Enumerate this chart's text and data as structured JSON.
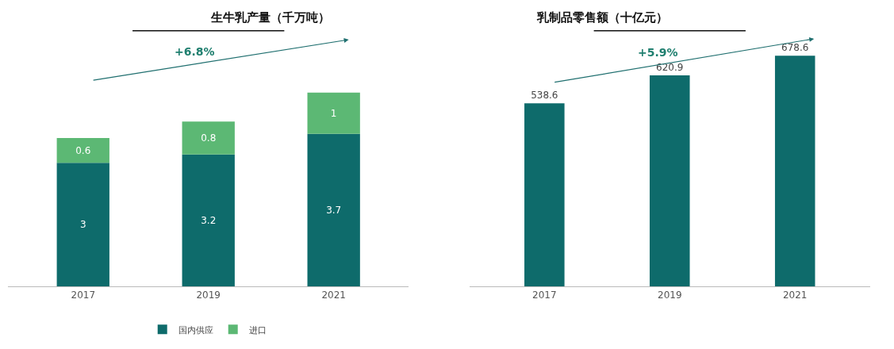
{
  "chart_data": [
    {
      "type": "bar",
      "title": "生牛乳产量（千万吨）",
      "categories": [
        "2017",
        "2019",
        "2021"
      ],
      "stacked": true,
      "series": [
        {
          "name": "国内供应",
          "color": "#0e6b6b",
          "values": [
            3,
            3.2,
            3.7
          ]
        },
        {
          "name": "进口",
          "color": "#5cb874",
          "values": [
            0.6,
            0.8,
            1
          ]
        }
      ],
      "tick_labels": "x",
      "data_labels": true,
      "legend": "bottom",
      "annotations": [
        "+6.8%"
      ]
    },
    {
      "type": "bar",
      "title": "乳制品零售额（十亿元）",
      "categories": [
        "2017",
        "2019",
        "2021"
      ],
      "series": [
        {
          "color": "#0e6b6b",
          "values": [
            538.6,
            620.9,
            678.6
          ]
        }
      ],
      "tick_labels": "x",
      "data_labels": true,
      "legend": false,
      "annotations": [
        "+5.9%"
      ]
    }
  ]
}
